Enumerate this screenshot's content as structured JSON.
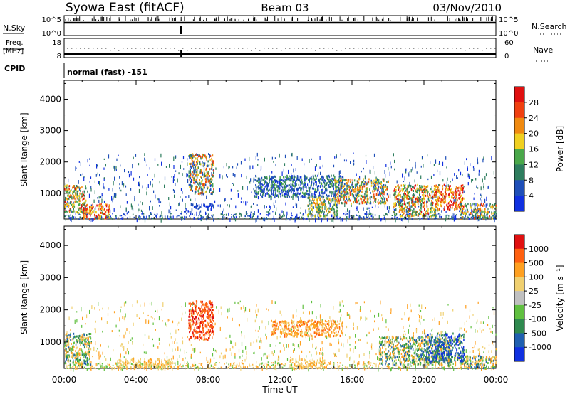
{
  "header": {
    "title": "Syowa East (fitACF)",
    "beam": "Beam 03",
    "date": "03/Nov/2010"
  },
  "strips": {
    "nsky_label": "N.Sky",
    "nsky_ticks": [
      "10^5",
      "10^0"
    ],
    "nsearch_label": "N.Search",
    "nsearch_ticks": [
      "10^5",
      "10^0"
    ],
    "freq_label_1": "Freq.",
    "freq_label_2": "[MHz]",
    "freq_ticks": [
      "18",
      "8"
    ],
    "nave_label": "Nave",
    "nave_ticks": [
      "60",
      "0"
    ],
    "cpid_label": "CPID",
    "cpid_value": "normal (fast) -151"
  },
  "colors": {
    "power": [
      "#1030e0",
      "#1f4fb8",
      "#2e7d5e",
      "#4aa84a",
      "#f0d020",
      "#f08a10",
      "#f04010",
      "#e01010"
    ],
    "velocity": [
      "#e01010",
      "#ff6010",
      "#ffa020",
      "#f0d070",
      "#c0c0c0",
      "#60c040",
      "#2f8a4f",
      "#2060b0",
      "#1030e0"
    ]
  },
  "chart_data": [
    {
      "type": "heatmap",
      "parameter": "power",
      "ylabel": "Slant Range [km]",
      "xlabel": "Time UT",
      "xticks": [
        "00:00",
        "04:00",
        "08:00",
        "12:00",
        "16:00",
        "20:00",
        "00:00"
      ],
      "yticks": [
        "1000",
        "2000",
        "3000",
        "4000"
      ],
      "ylim": [
        180,
        4600
      ],
      "xlim_hours": [
        0,
        24
      ],
      "colorbar_label": "Power [dB]",
      "colorbar_ticks": [
        "4",
        "8",
        "12",
        "16",
        "20",
        "24",
        "28"
      ],
      "patches": [
        {
          "t0": 0.0,
          "t1": 1.2,
          "r0": 400,
          "r1": 1300,
          "level": "mixed-high"
        },
        {
          "t0": 1.0,
          "t1": 2.5,
          "r0": 200,
          "r1": 700,
          "level": "high"
        },
        {
          "t0": 6.9,
          "t1": 8.3,
          "r0": 1000,
          "r1": 2300,
          "level": "mixed"
        },
        {
          "t0": 7.0,
          "t1": 8.3,
          "r0": 500,
          "r1": 700,
          "level": "low"
        },
        {
          "t0": 10.5,
          "t1": 15.5,
          "r0": 900,
          "r1": 1600,
          "level": "low-mid"
        },
        {
          "t0": 13.5,
          "t1": 15.2,
          "r0": 300,
          "r1": 900,
          "level": "mid"
        },
        {
          "t0": 15.0,
          "t1": 18.0,
          "r0": 700,
          "r1": 1500,
          "level": "mixed"
        },
        {
          "t0": 18.3,
          "t1": 20.8,
          "r0": 300,
          "r1": 1300,
          "level": "mixed-high"
        },
        {
          "t0": 20.6,
          "t1": 22.2,
          "r0": 500,
          "r1": 1300,
          "level": "high"
        },
        {
          "t0": 22.0,
          "t1": 24.0,
          "r0": 200,
          "r1": 700,
          "level": "mixed"
        }
      ]
    },
    {
      "type": "heatmap",
      "parameter": "velocity",
      "ylabel": "Slant Range [km]",
      "xlabel": "Time UT",
      "xticks": [
        "00:00",
        "04:00",
        "08:00",
        "12:00",
        "16:00",
        "20:00",
        "00:00"
      ],
      "yticks": [
        "1000",
        "2000",
        "3000",
        "4000"
      ],
      "ylim": [
        180,
        4600
      ],
      "xlim_hours": [
        0,
        24
      ],
      "colorbar_label": "Velocity [m s⁻¹]",
      "colorbar_ticks": [
        "1000",
        "500",
        "100",
        "25",
        "-25",
        "-100",
        "-500",
        "-1000"
      ],
      "patches": [
        {
          "t0": 0.0,
          "t1": 1.5,
          "r0": 300,
          "r1": 1300,
          "level": "mixed-green"
        },
        {
          "t0": 6.9,
          "t1": 8.3,
          "r0": 1100,
          "r1": 2300,
          "level": "red"
        },
        {
          "t0": 3.0,
          "t1": 6.0,
          "r0": 200,
          "r1": 500,
          "level": "yellow"
        },
        {
          "t0": 11.5,
          "t1": 15.5,
          "r0": 1200,
          "r1": 1700,
          "level": "orange"
        },
        {
          "t0": 12.5,
          "t1": 14.5,
          "r0": 200,
          "r1": 500,
          "level": "yellow"
        },
        {
          "t0": 17.5,
          "t1": 21.5,
          "r0": 300,
          "r1": 1200,
          "level": "mixed-green"
        },
        {
          "t0": 20.0,
          "t1": 22.2,
          "r0": 400,
          "r1": 1300,
          "level": "blue"
        },
        {
          "t0": 22.0,
          "t1": 24.0,
          "r0": 200,
          "r1": 600,
          "level": "mixed-green"
        }
      ]
    }
  ]
}
